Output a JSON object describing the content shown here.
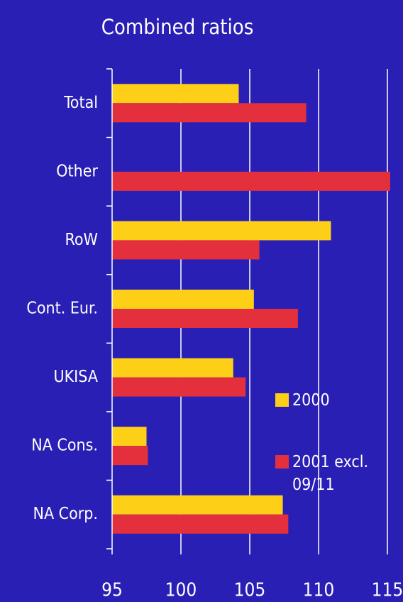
{
  "chart_data": {
    "type": "hbar",
    "title": "Combined ratios",
    "categories": [
      "Total",
      "Other",
      "RoW",
      "Cont. Eur.",
      "UKISA",
      "NA Cons.",
      "NA Corp."
    ],
    "series": [
      {
        "name": "2000",
        "color": "#fdd017",
        "values": [
          104.2,
          null,
          110.9,
          105.3,
          103.8,
          97.5,
          107.4
        ]
      },
      {
        "name": "2001 excl. 09/11",
        "color": "#e3303c",
        "values": [
          109.1,
          115.2,
          105.7,
          108.5,
          104.7,
          97.6,
          107.8
        ]
      }
    ],
    "xlim": [
      95,
      115
    ],
    "xticks": [
      95,
      100,
      105,
      110,
      115
    ],
    "grid": true
  }
}
